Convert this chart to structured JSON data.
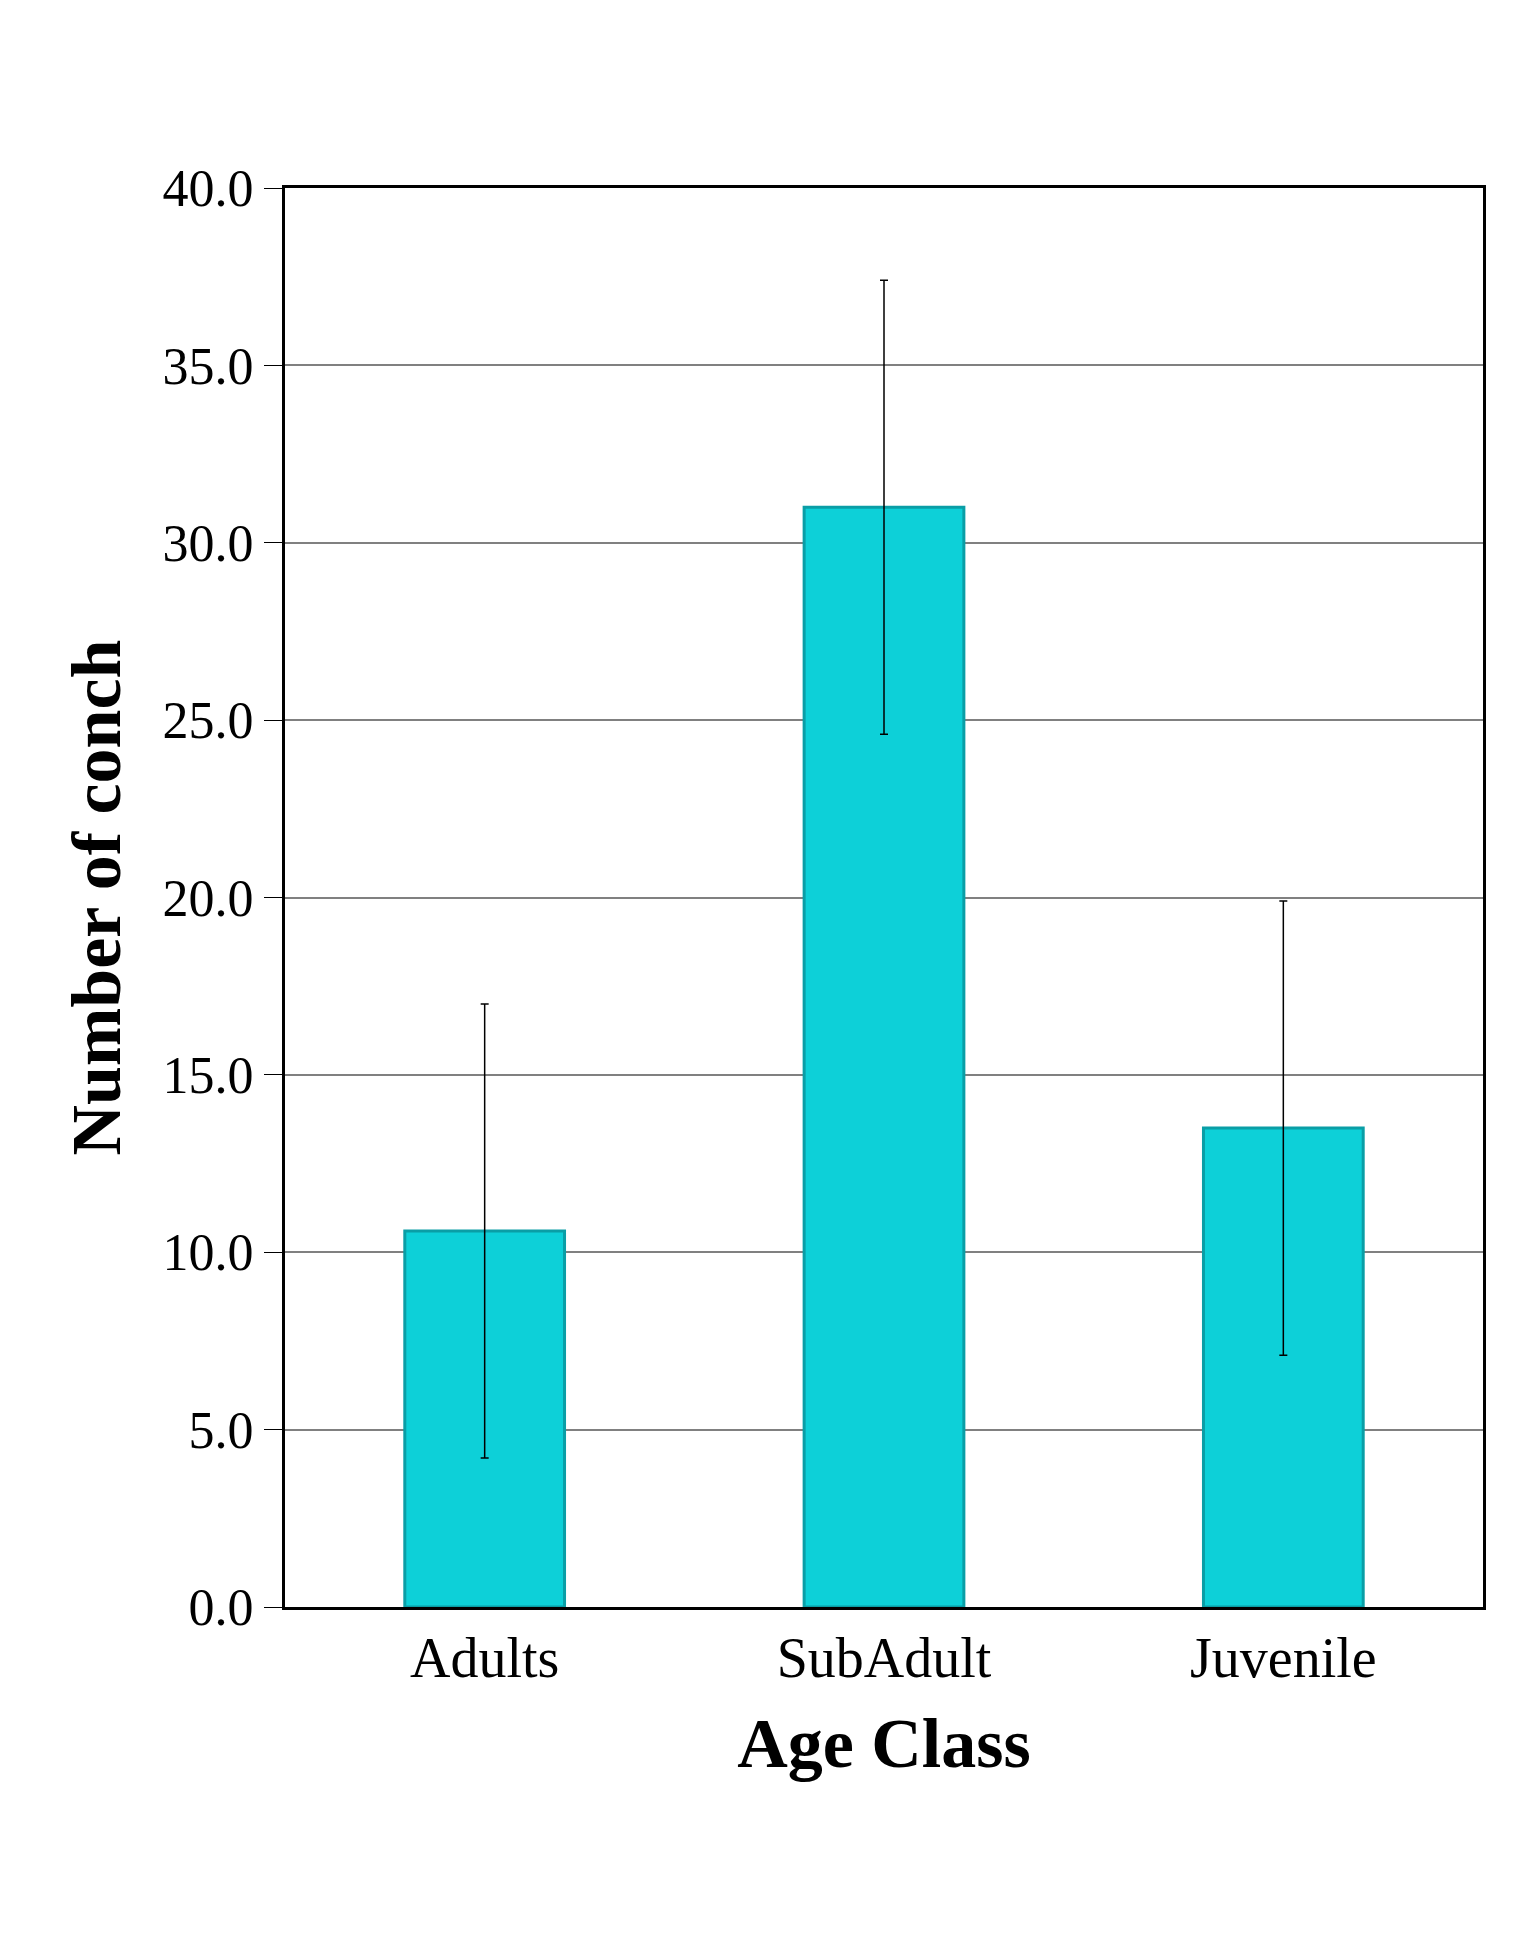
{
  "chart_data": {
    "type": "bar",
    "xlabel": "Age Class",
    "ylabel": "Number of conch",
    "categories": [
      "Adults",
      "SubAdult",
      "Juvenile"
    ],
    "values": [
      10.6,
      31.0,
      13.5
    ],
    "errors": [
      6.4,
      6.4,
      6.4
    ],
    "color": "#0dd0d8",
    "ylim": [
      0,
      40
    ],
    "yticks": [
      {
        "value": 0,
        "label": "0.0"
      },
      {
        "value": 5,
        "label": "5.0"
      },
      {
        "value": 10,
        "label": "10.0"
      },
      {
        "value": 15,
        "label": "15.0"
      },
      {
        "value": 20,
        "label": "20.0"
      },
      {
        "value": 25,
        "label": "25.0"
      },
      {
        "value": 30,
        "label": "30.0"
      },
      {
        "value": 35,
        "label": "35.0"
      },
      {
        "value": 40,
        "label": "40.0"
      }
    ],
    "grid": "y",
    "legend": false
  }
}
